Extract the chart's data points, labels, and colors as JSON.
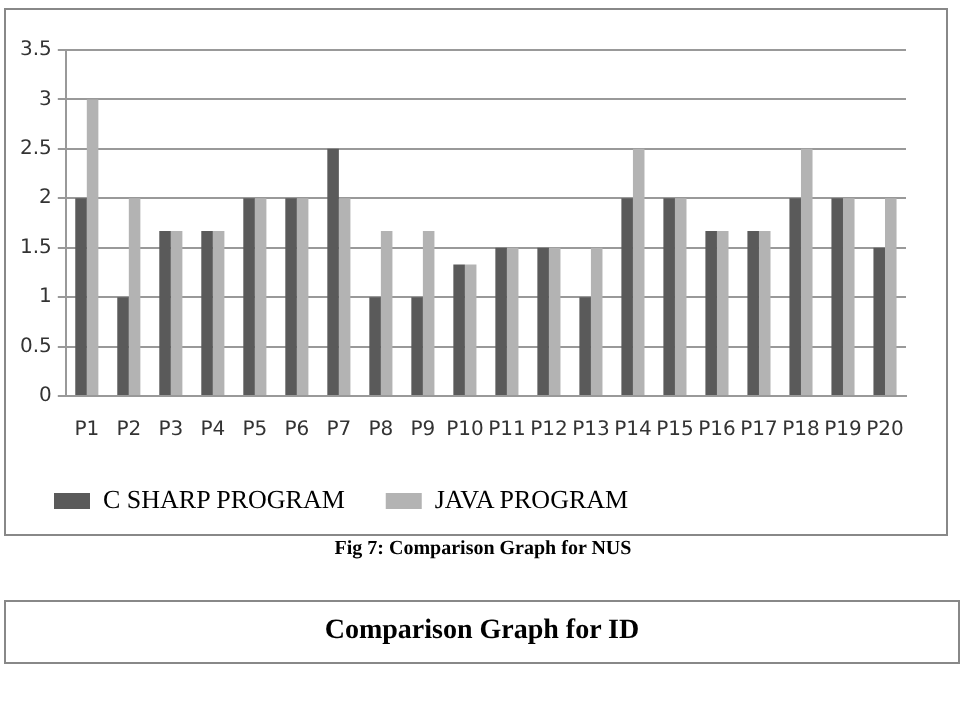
{
  "chart_data": {
    "type": "bar",
    "categories": [
      "P1",
      "P2",
      "P3",
      "P4",
      "P5",
      "P6",
      "P7",
      "P8",
      "P9",
      "P10",
      "P11",
      "P12",
      "P13",
      "P14",
      "P15",
      "P16",
      "P17",
      "P18",
      "P19",
      "P20"
    ],
    "series": [
      {
        "name": "C SHARP PROGRAM",
        "color": "#5a5a5a",
        "values": [
          2,
          1,
          1.67,
          1.67,
          2,
          2,
          2.5,
          1,
          1,
          1.33,
          1.5,
          1.5,
          1,
          2,
          2,
          1.67,
          1.67,
          2,
          2,
          1.5
        ]
      },
      {
        "name": "JAVA PROGRAM",
        "color": "#b3b3b3",
        "values": [
          3,
          2,
          1.67,
          1.67,
          2,
          2,
          2,
          1.67,
          1.67,
          1.33,
          1.5,
          1.5,
          1.5,
          2.5,
          2,
          1.67,
          1.67,
          2.5,
          2,
          2
        ]
      }
    ],
    "ylim": [
      0,
      3.5
    ],
    "yticks": [
      0,
      0.5,
      1,
      1.5,
      2,
      2.5,
      3,
      3.5
    ],
    "grid": "y",
    "legend": "bottom left",
    "annotations": [
      "Fig 7: Comparison Graph for NUS",
      "Comparison Graph for ID"
    ]
  }
}
